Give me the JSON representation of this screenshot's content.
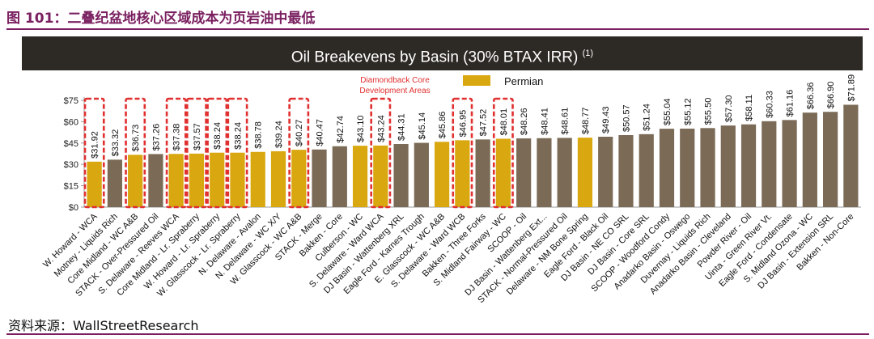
{
  "figure": {
    "caption": "图 101：二叠纪盆地核心区域成本为页岩油中最低",
    "source": "资料来源：WallStreetResearch"
  },
  "colors": {
    "caption": "#7a2060",
    "banner": "#2d2a26",
    "other_basin": "#7a6a56",
    "permian": "#d9a70f",
    "highlight_box": "#e03030"
  },
  "chart_data": {
    "type": "bar",
    "title": "Oil Breakevens by Basin (30% BTAX IRR)",
    "title_superscript": "(1)",
    "ylim": [
      0,
      75
    ],
    "yticks": [
      "$0",
      "$15",
      "$30",
      "$45",
      "$60",
      "$75"
    ],
    "ytick_values": [
      0,
      15,
      30,
      45,
      60,
      75
    ],
    "grid": false,
    "legend": {
      "placement": "top-center",
      "entries": [
        {
          "name": "Permian",
          "color": "#d9a70f"
        }
      ]
    },
    "annotation": "Diamondback Core Development Areas",
    "categories": [
      "W. Howard - WCA",
      "Motney - Liquids Rich",
      "Core Midland - WC A&B",
      "STACK - Over-Pressured Oil",
      "S. Delaware - Reeves WCA",
      "Core Midland - Lr. Spraberry",
      "W. Howard - Lr. Spraberry",
      "W. Glasscock - Lr. Spraberry",
      "N. Delaware - Avalon",
      "N. Delaware - WC X/Y",
      "W. Glasscock - WC A&B",
      "STACK - Merge",
      "Bakken - Core",
      "Culberson - WC",
      "S. Delaware - Ward WCA",
      "DJ Basin - Wattenberg XRL",
      "Eagle Ford - Karnes Trough",
      "E. Glasscock - WC A&B",
      "S. Delaware - Ward WCB",
      "Bakken - Three Forks",
      "S. Midland Fairway - WC",
      "SCOOP - Oil",
      "DJ Basin - Wattenberg Ext...",
      "STACK - Normal-Pressured Oil",
      "Delaware - NM Bone Spring",
      "Eagle Ford - Black Oil",
      "DJ Basin - NE CO SRL",
      "DJ Basin - Core SRL",
      "SCOOP - Woodford Condy",
      "Anadarko Basin - Oswego",
      "Duvernay - Liquids Rich",
      "Anadarko Basin - Cleveland",
      "Powder River - Oil",
      "Uinta - Green River Vt.",
      "Eagle Ford - Condensate",
      "S. Midland Ozona - WC",
      "DJ Basin - Extension SRL",
      "Bakken - Non-Core"
    ],
    "values": [
      31.92,
      33.32,
      36.73,
      37.26,
      37.38,
      37.57,
      38.24,
      38.24,
      38.78,
      39.24,
      40.27,
      40.47,
      42.74,
      43.1,
      43.24,
      44.31,
      45.14,
      45.86,
      46.95,
      47.52,
      48.01,
      48.26,
      48.41,
      48.61,
      48.77,
      49.43,
      50.57,
      51.24,
      55.04,
      55.12,
      55.5,
      57.3,
      58.11,
      60.33,
      61.16,
      66.36,
      66.9,
      71.89
    ],
    "labels": [
      "$31.92",
      "$33.32",
      "$36.73",
      "$37.26",
      "$37.38",
      "$37.57",
      "$38.24",
      "$38.24",
      "$38.78",
      "$39.24",
      "$40.27",
      "$40.47",
      "$42.74",
      "$43.10",
      "$43.24",
      "$44.31",
      "$45.14",
      "$45.86",
      "$46.95",
      "$47.52",
      "$48.01",
      "$48.26",
      "$48.41",
      "$48.61",
      "$48.77",
      "$49.43",
      "$50.57",
      "$51.24",
      "$55.04",
      "$55.12",
      "$55.50",
      "$57.30",
      "$58.11",
      "$60.33",
      "$61.16",
      "$66.36",
      "$66.90",
      "$71.89"
    ],
    "permian_flags": [
      true,
      false,
      true,
      false,
      true,
      true,
      true,
      true,
      true,
      true,
      true,
      false,
      false,
      true,
      true,
      false,
      false,
      true,
      true,
      false,
      true,
      false,
      false,
      false,
      true,
      false,
      false,
      false,
      false,
      false,
      false,
      false,
      false,
      false,
      false,
      false,
      false,
      false
    ],
    "diamondback_flags": [
      true,
      false,
      true,
      false,
      true,
      true,
      true,
      true,
      false,
      false,
      true,
      false,
      false,
      false,
      true,
      false,
      false,
      false,
      true,
      false,
      true,
      false,
      false,
      false,
      false,
      false,
      false,
      false,
      false,
      false,
      false,
      false,
      false,
      false,
      false,
      false,
      false,
      false
    ]
  }
}
